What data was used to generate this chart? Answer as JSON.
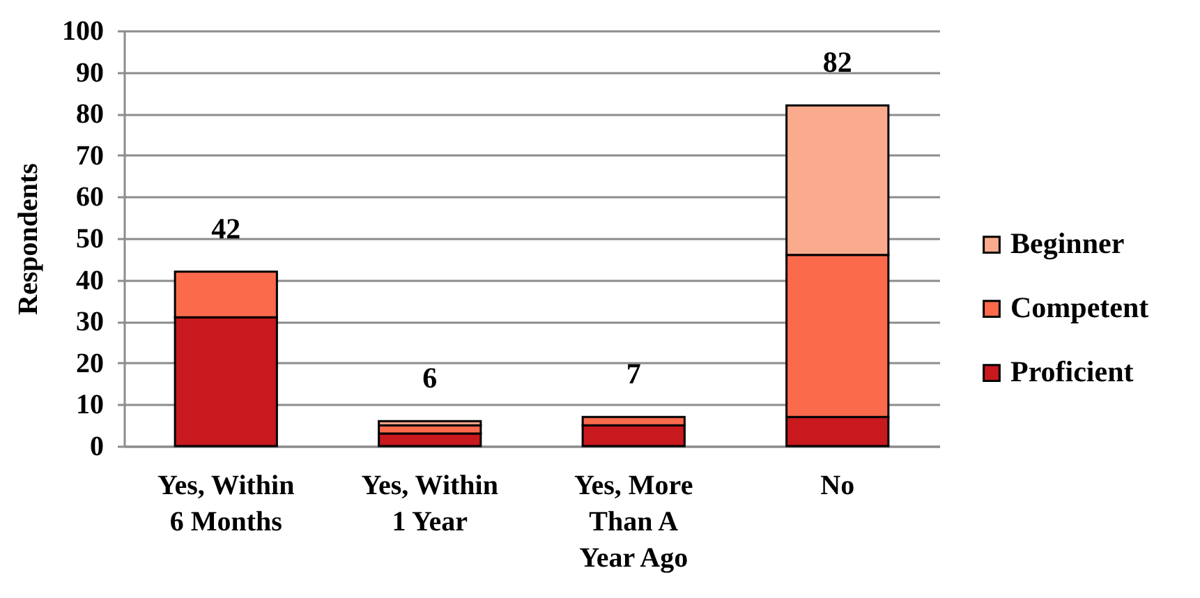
{
  "chart_data": {
    "type": "bar",
    "stacked": true,
    "ylabel": "Respondents",
    "categories": [
      "Yes, Within 6 Months",
      "Yes, Within 1 Year",
      "Yes, More Than A Year Ago",
      "No"
    ],
    "series": [
      {
        "name": "Proficient",
        "color": "#c8191e",
        "values": [
          31,
          3,
          5,
          7
        ]
      },
      {
        "name": "Competent",
        "color": "#fc6a4c",
        "values": [
          11,
          2,
          2,
          39
        ]
      },
      {
        "name": "Beginner",
        "color": "#fbab8d",
        "values": [
          0,
          1,
          0,
          36
        ]
      }
    ],
    "totals": [
      "42",
      "6",
      "7",
      "82"
    ],
    "ylim": [
      0,
      100
    ],
    "yticks": [
      0,
      10,
      20,
      30,
      40,
      50,
      60,
      70,
      80,
      90,
      100
    ],
    "grid": "y",
    "legend": "right"
  }
}
